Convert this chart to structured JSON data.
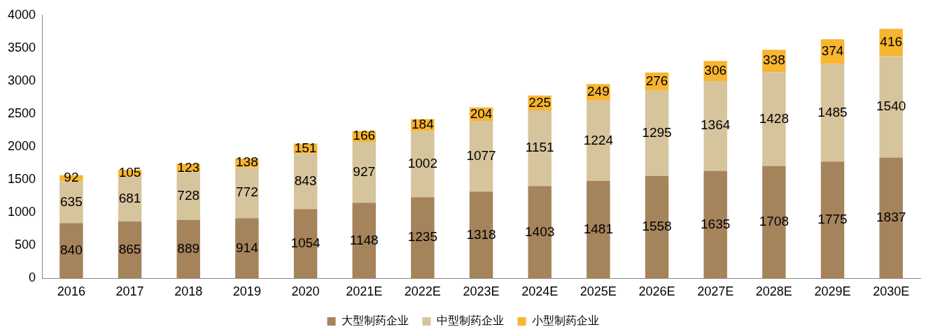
{
  "chart_data": {
    "type": "bar",
    "stacked": true,
    "categories": [
      "2016",
      "2017",
      "2018",
      "2019",
      "2020",
      "2021E",
      "2022E",
      "2023E",
      "2024E",
      "2025E",
      "2026E",
      "2027E",
      "2028E",
      "2029E",
      "2030E"
    ],
    "series": [
      {
        "name": "大型制药企业",
        "color": "#a5835b",
        "values": [
          840,
          865,
          889,
          914,
          1054,
          1148,
          1235,
          1318,
          1403,
          1481,
          1558,
          1635,
          1708,
          1775,
          1837
        ]
      },
      {
        "name": "中型制药企业",
        "color": "#d6c49c",
        "values": [
          635,
          681,
          728,
          772,
          843,
          927,
          1002,
          1077,
          1151,
          1224,
          1295,
          1364,
          1428,
          1485,
          1540
        ]
      },
      {
        "name": "小型制药企业",
        "color": "#f7b530",
        "values": [
          92,
          105,
          123,
          138,
          151,
          166,
          184,
          204,
          225,
          249,
          276,
          306,
          338,
          374,
          416
        ]
      }
    ],
    "ylim": [
      0,
      4000
    ],
    "yticks": [
      0,
      500,
      1000,
      1500,
      2000,
      2500,
      3000,
      3500,
      4000
    ],
    "grid": false,
    "legend": "bottom",
    "data_labels": true
  }
}
